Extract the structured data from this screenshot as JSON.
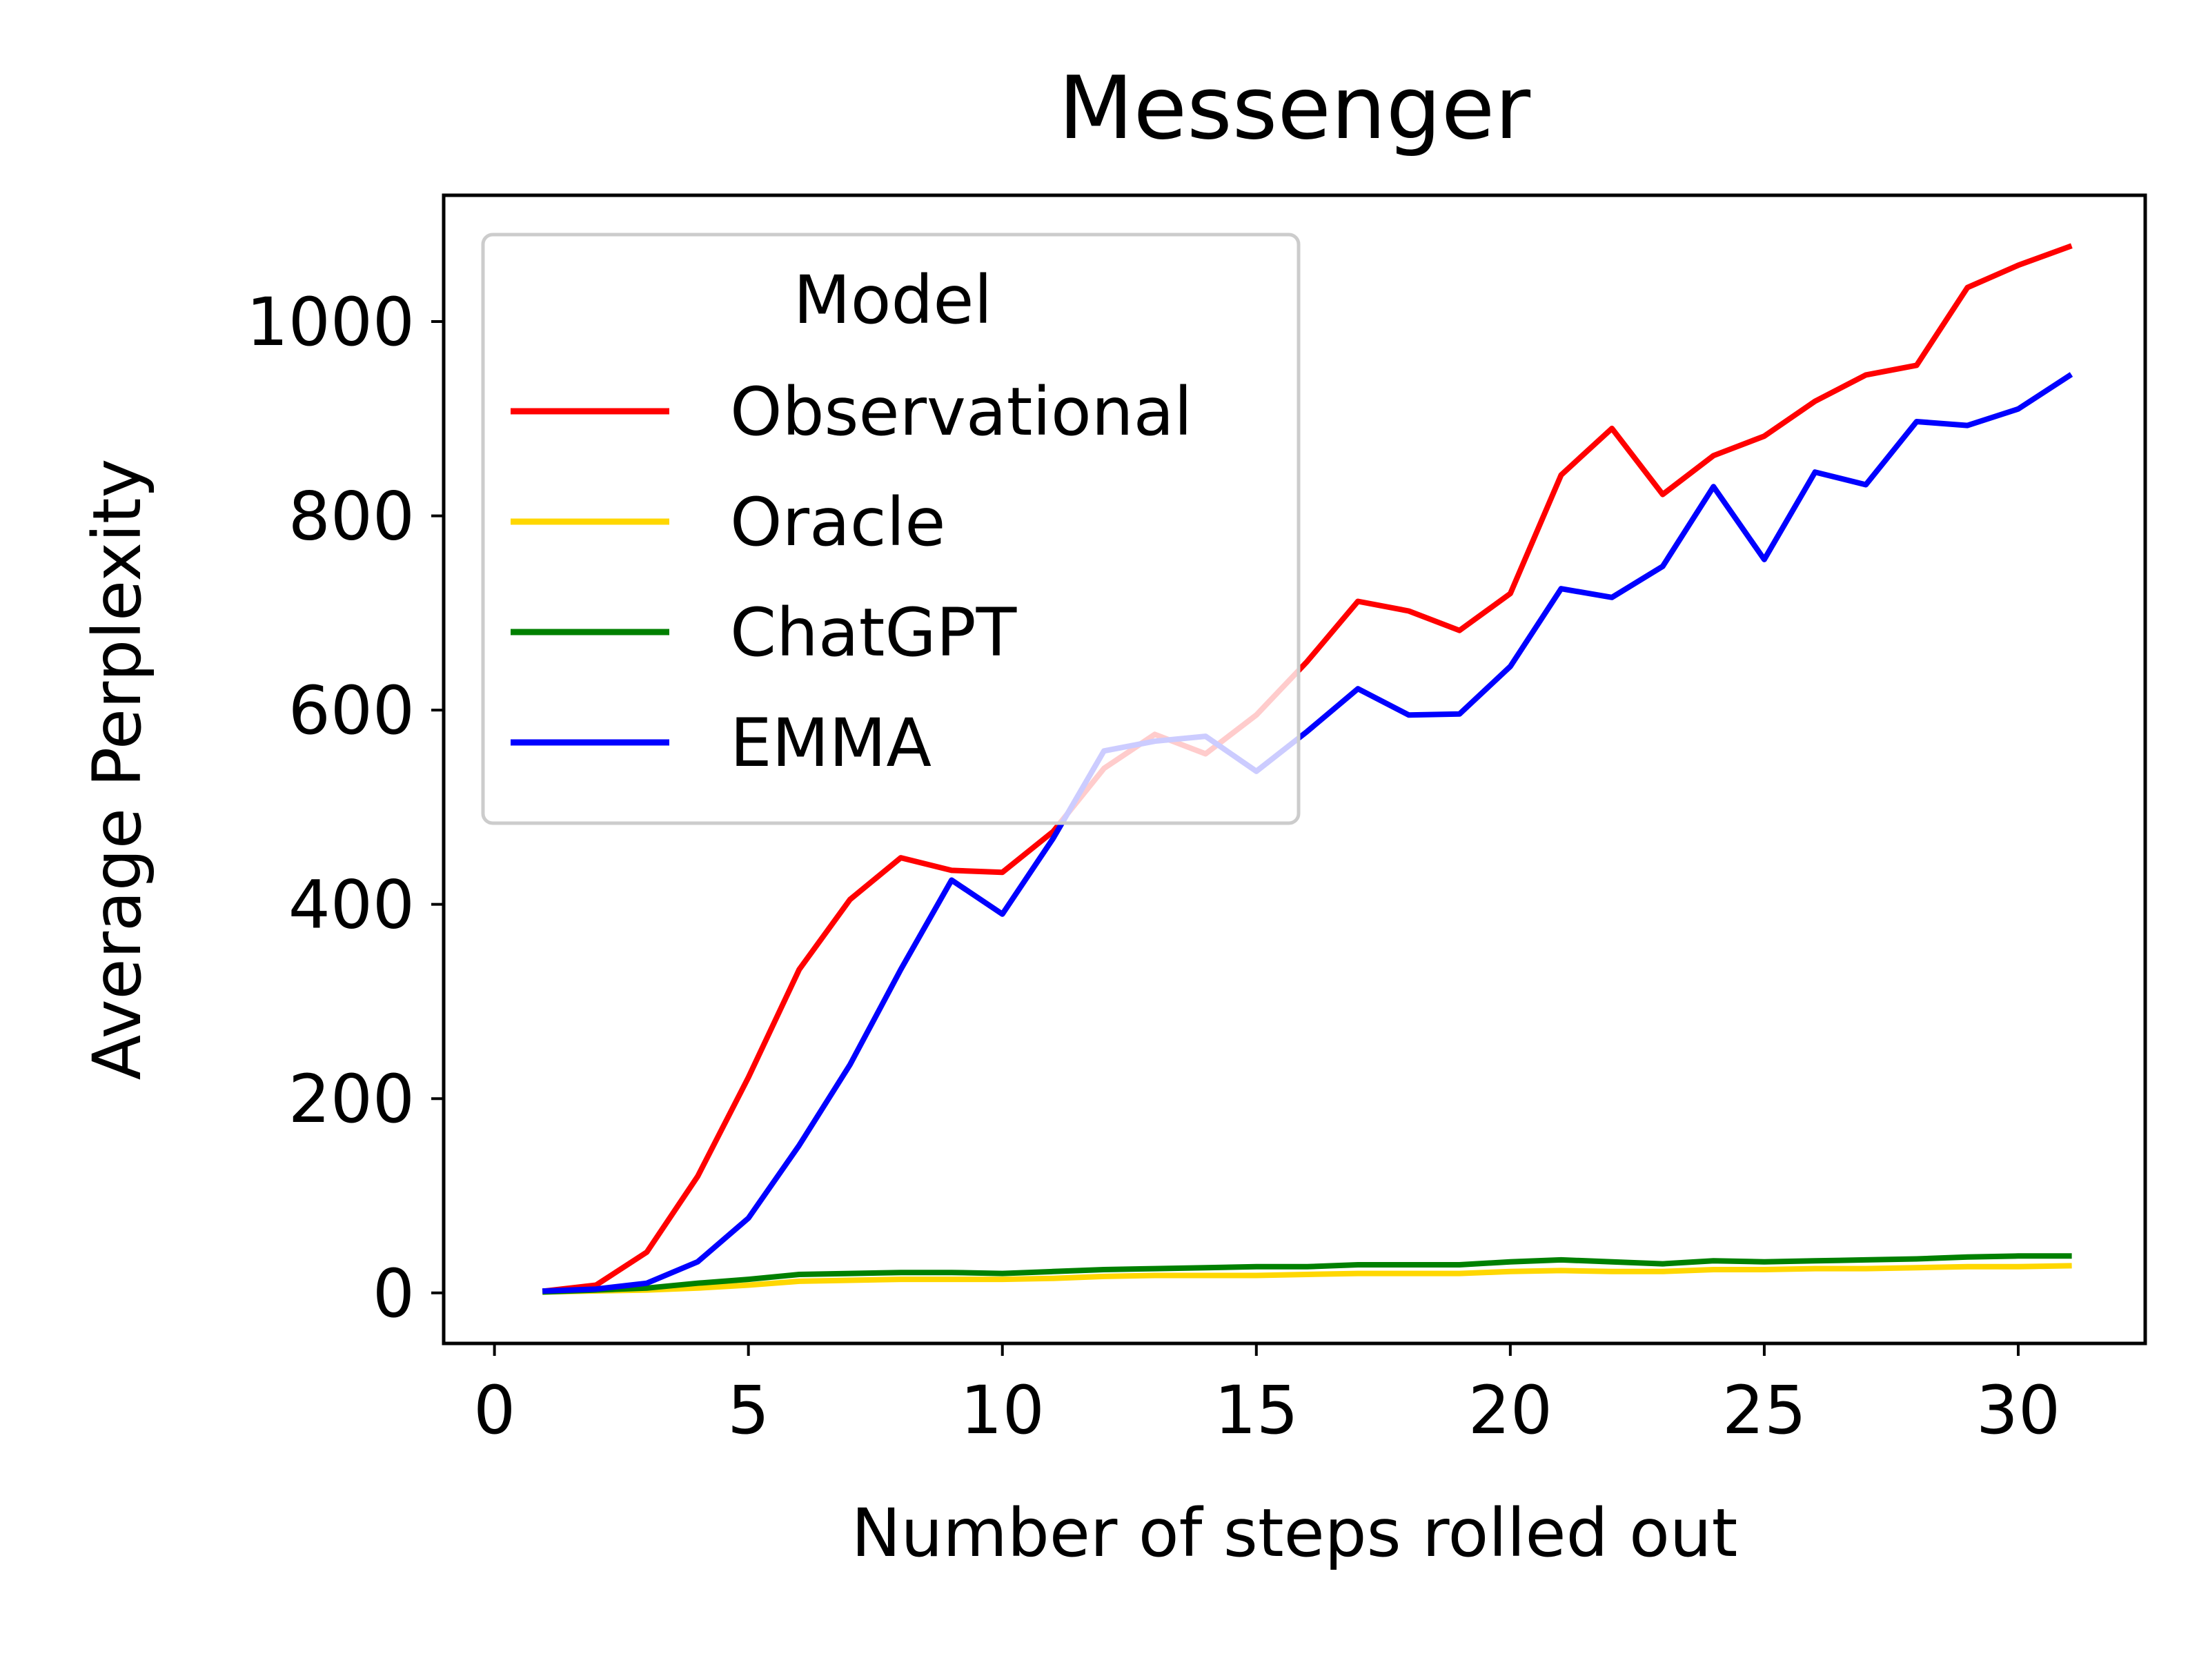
{
  "chart_data": {
    "type": "line",
    "title": "Messenger",
    "xlabel": "Number of steps rolled out",
    "ylabel": "Average Perplexity",
    "xlim": [
      -1,
      32.5
    ],
    "ylim": [
      -52,
      1130
    ],
    "xticks": [
      0,
      5,
      10,
      15,
      20,
      25,
      30
    ],
    "yticks": [
      0,
      200,
      400,
      600,
      800,
      1000
    ],
    "grid": false,
    "legend": {
      "title": "Model",
      "placement": "top-left"
    },
    "x": [
      1,
      2,
      3,
      4,
      5,
      6,
      7,
      8,
      9,
      10,
      11,
      12,
      13,
      14,
      15,
      16,
      17,
      18,
      19,
      20,
      21,
      22,
      23,
      24,
      25,
      26,
      27,
      28,
      29,
      30,
      31
    ],
    "series": [
      {
        "name": "Observational",
        "color": "#ff0000",
        "values": [
          2,
          8,
          42,
          120,
          222,
          333,
          405,
          448,
          435,
          433,
          475,
          540,
          575,
          555,
          595,
          650,
          712,
          702,
          682,
          720,
          842,
          890,
          822,
          862,
          882,
          918,
          945,
          955,
          1035,
          1058,
          1077
        ]
      },
      {
        "name": "Oracle",
        "color": "#ffd700",
        "values": [
          1,
          2,
          3,
          5,
          8,
          12,
          13,
          14,
          14,
          14,
          15,
          17,
          18,
          18,
          18,
          19,
          20,
          20,
          20,
          22,
          23,
          22,
          22,
          24,
          24,
          25,
          25,
          26,
          27,
          27,
          28
        ]
      },
      {
        "name": "ChatGPT",
        "color": "#008000",
        "values": [
          1,
          3,
          5,
          10,
          14,
          19,
          20,
          21,
          21,
          20,
          22,
          24,
          25,
          26,
          27,
          27,
          29,
          29,
          29,
          32,
          34,
          32,
          30,
          33,
          32,
          33,
          34,
          35,
          37,
          38,
          38
        ]
      },
      {
        "name": "EMMA",
        "color": "#0000ff",
        "values": [
          2,
          4,
          10,
          32,
          77,
          152,
          235,
          333,
          425,
          390,
          468,
          558,
          568,
          573,
          537,
          578,
          622,
          595,
          596,
          645,
          725,
          716,
          748,
          830,
          755,
          845,
          832,
          897,
          893,
          910,
          944
        ]
      }
    ]
  }
}
